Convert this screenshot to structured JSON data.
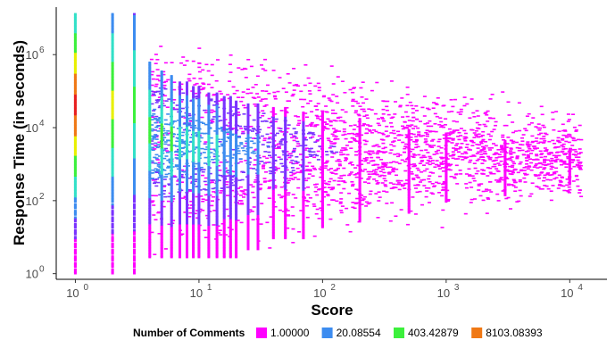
{
  "chart_data": {
    "type": "heatmap",
    "title": "",
    "xlabel": "Score",
    "ylabel": "Response Time (in seconds)",
    "x_scale": "log10",
    "y_scale": "log10",
    "xlim": [
      0.7,
      20000
    ],
    "ylim": [
      0.7,
      20000000
    ],
    "x_ticks": [
      {
        "value": 1,
        "label": "10",
        "exp": "0"
      },
      {
        "value": 10,
        "label": "10",
        "exp": "1"
      },
      {
        "value": 100,
        "label": "10",
        "exp": "2"
      },
      {
        "value": 1000,
        "label": "10",
        "exp": "3"
      },
      {
        "value": 10000,
        "label": "10",
        "exp": "4"
      }
    ],
    "y_ticks": [
      {
        "value": 1,
        "label": "10",
        "exp": "0"
      },
      {
        "value": 100,
        "label": "10",
        "exp": "2"
      },
      {
        "value": 10000,
        "label": "10",
        "exp": "4"
      },
      {
        "value": 1000000,
        "label": "10",
        "exp": "6"
      }
    ],
    "grid": false,
    "legend": {
      "title": "Number of Comments",
      "placement": "bottom",
      "entries": [
        {
          "label": "1.00000",
          "color": "#ff00ff"
        },
        {
          "label": "20.08554",
          "color": "#3c8cf0"
        },
        {
          "label": "403.42879",
          "color": "#3cf03c"
        },
        {
          "label": "8103.08393",
          "color": "#f07814"
        }
      ]
    },
    "color_scale": [
      "#ff00ff",
      "#7a33ff",
      "#3c8cf0",
      "#33e0c8",
      "#3cf03c",
      "#e8f000",
      "#f07814",
      "#e81e1e"
    ],
    "score_columns": [
      {
        "score": 1,
        "y_min": 1,
        "y_max": 15000000,
        "peak_color_index": 7
      },
      {
        "score": 2,
        "y_min": 1,
        "y_max": 15000000,
        "peak_color_index": 5
      },
      {
        "score": 3,
        "y_min": 1,
        "y_max": 15000000,
        "peak_color_index": 4
      },
      {
        "score": 4,
        "y_min": 3,
        "y_max": 700000,
        "peak_color_index": 4
      },
      {
        "score": 5,
        "y_min": 3,
        "y_max": 400000,
        "peak_color_index": 4
      },
      {
        "score": 6,
        "y_min": 3,
        "y_max": 300000,
        "peak_color_index": 4
      },
      {
        "score": 7,
        "y_min": 3,
        "y_max": 200000,
        "peak_color_index": 3
      },
      {
        "score": 8,
        "y_min": 3,
        "y_max": 200000,
        "peak_color_index": 3
      },
      {
        "score": 9,
        "y_min": 3,
        "y_max": 150000,
        "peak_color_index": 3
      },
      {
        "score": 10,
        "y_min": 3,
        "y_max": 150000,
        "peak_color_index": 3
      },
      {
        "score": 12,
        "y_min": 3,
        "y_max": 100000,
        "peak_color_index": 3
      },
      {
        "score": 14,
        "y_min": 3,
        "y_max": 100000,
        "peak_color_index": 3
      },
      {
        "score": 16,
        "y_min": 3,
        "y_max": 80000,
        "peak_color_index": 2
      },
      {
        "score": 18,
        "y_min": 3,
        "y_max": 80000,
        "peak_color_index": 2
      },
      {
        "score": 20,
        "y_min": 3,
        "y_max": 60000,
        "peak_color_index": 2
      },
      {
        "score": 25,
        "y_min": 5,
        "y_max": 50000,
        "peak_color_index": 2
      },
      {
        "score": 30,
        "y_min": 5,
        "y_max": 50000,
        "peak_color_index": 2
      },
      {
        "score": 40,
        "y_min": 10,
        "y_max": 40000,
        "peak_color_index": 1
      },
      {
        "score": 50,
        "y_min": 10,
        "y_max": 40000,
        "peak_color_index": 1
      },
      {
        "score": 70,
        "y_min": 10,
        "y_max": 30000,
        "peak_color_index": 1
      },
      {
        "score": 100,
        "y_min": 20,
        "y_max": 30000,
        "peak_color_index": 0
      },
      {
        "score": 200,
        "y_min": 30,
        "y_max": 20000,
        "peak_color_index": 0
      },
      {
        "score": 500,
        "y_min": 50,
        "y_max": 10000,
        "peak_color_index": 0
      },
      {
        "score": 1000,
        "y_min": 100,
        "y_max": 8000,
        "peak_color_index": 0
      },
      {
        "score": 3000,
        "y_min": 150,
        "y_max": 5000,
        "peak_color_index": 0
      },
      {
        "score": 10000,
        "y_min": 300,
        "y_max": 3000,
        "peak_color_index": 0
      }
    ]
  }
}
